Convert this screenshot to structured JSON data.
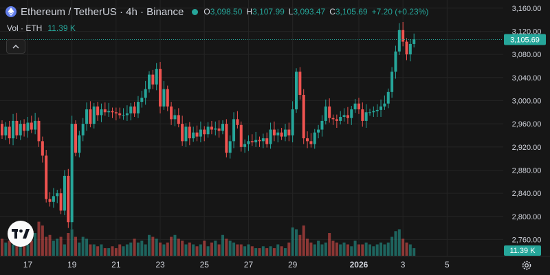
{
  "header": {
    "symbol_title": "Ethereum / TetherUS · 4h · Binance",
    "ohlc": [
      {
        "key": "O",
        "value": "3,098.50"
      },
      {
        "key": "H",
        "value": "3,107.99"
      },
      {
        "key": "L",
        "value": "3,093.47"
      },
      {
        "key": "C",
        "value": "3,105.69"
      }
    ],
    "change": "+7.20 (+0.23%)",
    "volume_label": "Vol · ETH",
    "volume_value": "11.39 K"
  },
  "colors": {
    "up": "#26a69a",
    "down": "#ef5350",
    "background": "#161616",
    "grid": "#242424",
    "text": "#d1d4dc",
    "eth": "#627eea"
  },
  "icons": {
    "coin": "ethereum-icon",
    "collapse": "chevron-up-icon",
    "logo": "tradingview-logo",
    "settings": "gear-icon"
  },
  "chart_data": {
    "type": "candlestick",
    "ylim": [
      2732,
      3174
    ],
    "y_ticks": [
      3160,
      3120,
      3080,
      3040,
      3000,
      2960,
      2920,
      2880,
      2840,
      2800,
      2760
    ],
    "y_tick_labels": [
      "3,160.00",
      "3,120.00",
      "3,080.00",
      "3,040.00",
      "3,000.00",
      "2,960.00",
      "2,920.00",
      "2,880.00",
      "2,840.00",
      "2,800.00",
      "2,760.00"
    ],
    "x_ticks": [
      {
        "label": "17",
        "index": 7
      },
      {
        "label": "19",
        "index": 19
      },
      {
        "label": "21",
        "index": 31
      },
      {
        "label": "23",
        "index": 43
      },
      {
        "label": "25",
        "index": 55
      },
      {
        "label": "27",
        "index": 67
      },
      {
        "label": "29",
        "index": 79
      },
      {
        "label": "2026",
        "index": 97
      },
      {
        "label": "3",
        "index": 109
      },
      {
        "label": "5",
        "index": 121
      }
    ],
    "last_price": 3105.69,
    "last_price_label": "3,105.69",
    "last_volume_label": "11.39 K",
    "closes": [
      2940,
      2955,
      2935,
      2965,
      2940,
      2960,
      2948,
      2962,
      2950,
      2965,
      2930,
      2905,
      2830,
      2825,
      2835,
      2840,
      2810,
      2870,
      2790,
      2960,
      2910,
      2940,
      2960,
      2985,
      2960,
      2990,
      2975,
      2985,
      2980,
      2982,
      2980,
      2978,
      2975,
      2975,
      2978,
      2990,
      2978,
      2998,
      3005,
      3020,
      3045,
      3028,
      3055,
      2990,
      3020,
      2990,
      2968,
      2975,
      2960,
      2930,
      2955,
      2935,
      2945,
      2938,
      2950,
      2942,
      2955,
      2950,
      2952,
      2948,
      2960,
      2910,
      2930,
      2968,
      2958,
      2920,
      2925,
      2930,
      2928,
      2932,
      2930,
      2935,
      2925,
      2950,
      2940,
      2945,
      2938,
      2950,
      2940,
      2985,
      3050,
      3010,
      2935,
      2930,
      2925,
      2945,
      2950,
      2965,
      2990,
      2970,
      2968,
      2965,
      2972,
      2975,
      2970,
      2985,
      2995,
      2985,
      2965,
      2980,
      2980,
      2982,
      2984,
      2990,
      2995,
      3015,
      3050,
      3085,
      3122,
      3102,
      3080,
      3098,
      3106
    ],
    "opens": [
      2960,
      2940,
      2955,
      2935,
      2965,
      2940,
      2960,
      2948,
      2962,
      2950,
      2965,
      2930,
      2905,
      2830,
      2825,
      2835,
      2840,
      2810,
      2870,
      2790,
      2960,
      2910,
      2940,
      2960,
      2985,
      2960,
      2990,
      2975,
      2985,
      2980,
      2982,
      2980,
      2978,
      2975,
      2975,
      2978,
      2990,
      2978,
      2998,
      3005,
      3020,
      3045,
      3028,
      3055,
      2990,
      3020,
      2990,
      2968,
      2975,
      2960,
      2930,
      2955,
      2935,
      2945,
      2938,
      2950,
      2942,
      2955,
      2950,
      2952,
      2948,
      2960,
      2910,
      2930,
      2968,
      2958,
      2920,
      2925,
      2930,
      2928,
      2932,
      2930,
      2935,
      2925,
      2950,
      2940,
      2945,
      2938,
      2950,
      2940,
      2985,
      3050,
      3010,
      2935,
      2930,
      2925,
      2945,
      2950,
      2965,
      2990,
      2970,
      2968,
      2965,
      2972,
      2975,
      2970,
      2985,
      2995,
      2985,
      2965,
      2980,
      2980,
      2982,
      2984,
      2990,
      2995,
      3015,
      3050,
      3085,
      3122,
      3102,
      3080,
      3098
    ],
    "volumes": [
      0.45,
      0.35,
      0.4,
      0.3,
      0.3,
      0.35,
      0.3,
      0.3,
      0.4,
      0.6,
      0.9,
      0.8,
      0.5,
      0.55,
      0.4,
      0.45,
      0.5,
      0.3,
      0.6,
      0.7,
      0.5,
      0.35,
      0.5,
      0.45,
      0.3,
      0.3,
      0.25,
      0.3,
      0.2,
      0.2,
      0.25,
      0.2,
      0.3,
      0.25,
      0.3,
      0.35,
      0.45,
      0.35,
      0.4,
      0.3,
      0.55,
      0.5,
      0.45,
      0.35,
      0.3,
      0.35,
      0.5,
      0.55,
      0.45,
      0.4,
      0.3,
      0.35,
      0.3,
      0.25,
      0.3,
      0.4,
      0.25,
      0.35,
      0.4,
      0.3,
      0.55,
      0.45,
      0.4,
      0.35,
      0.3,
      0.3,
      0.25,
      0.3,
      0.25,
      0.2,
      0.2,
      0.25,
      0.2,
      0.25,
      0.2,
      0.3,
      0.25,
      0.2,
      0.35,
      0.75,
      0.7,
      0.55,
      0.8,
      0.45,
      0.35,
      0.3,
      0.4,
      0.3,
      0.35,
      0.6,
      0.4,
      0.35,
      0.3,
      0.35,
      0.3,
      0.25,
      0.4,
      0.3,
      0.3,
      0.35,
      0.3,
      0.25,
      0.3,
      0.35,
      0.3,
      0.35,
      0.5,
      0.65,
      0.7,
      0.45,
      0.35,
      0.3,
      0.2
    ]
  }
}
